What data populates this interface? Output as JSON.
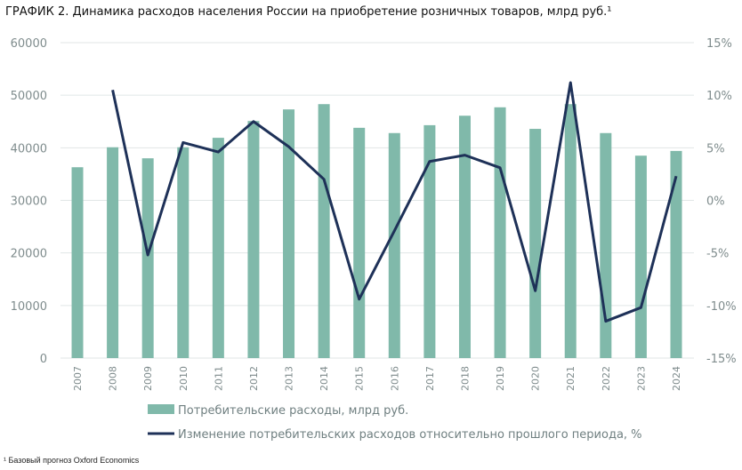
{
  "title": "ГРАФИК 2. Динамика расходов населения России на приобретение розничных товаров, млрд руб.¹",
  "footnote": "¹ Базовый прогноз Oxford Economics",
  "colors": {
    "bar": "#80b9aa",
    "line": "#1e3158",
    "grid": "#e1e6e6"
  },
  "chart_data": {
    "type": "bar+line",
    "categories": [
      "2007",
      "2008",
      "2009",
      "2010",
      "2011",
      "2012",
      "2013",
      "2014",
      "2015",
      "2016",
      "2017",
      "2018",
      "2019",
      "2020",
      "2021",
      "2022",
      "2023",
      "2024"
    ],
    "series": [
      {
        "name": "Потребительские расходы, млрд руб.",
        "type": "bar",
        "axis": "left",
        "values": [
          36300,
          40100,
          38000,
          40100,
          41900,
          45100,
          47300,
          48300,
          43800,
          42800,
          44300,
          46100,
          47700,
          43600,
          48300,
          42800,
          38500,
          39400
        ]
      },
      {
        "name": "Изменение потребительских расходов относительно прошлого периода, %",
        "type": "line",
        "axis": "right",
        "values": [
          null,
          10.5,
          -5.2,
          5.5,
          4.6,
          7.5,
          5.1,
          2.0,
          -9.4,
          -2.9,
          3.7,
          4.3,
          3.1,
          -8.6,
          11.2,
          -11.5,
          -10.2,
          2.3
        ]
      }
    ],
    "left_axis": {
      "ylim": [
        0,
        60000
      ],
      "ticks": [
        "0",
        "10000",
        "20000",
        "30000",
        "40000",
        "50000",
        "60000"
      ]
    },
    "right_axis": {
      "ylim": [
        -15,
        15
      ],
      "ticks": [
        "-15%",
        "-10%",
        "-5%",
        "0%",
        "5%",
        "10%",
        "15%"
      ]
    },
    "grid": true,
    "legend": "bottom"
  }
}
